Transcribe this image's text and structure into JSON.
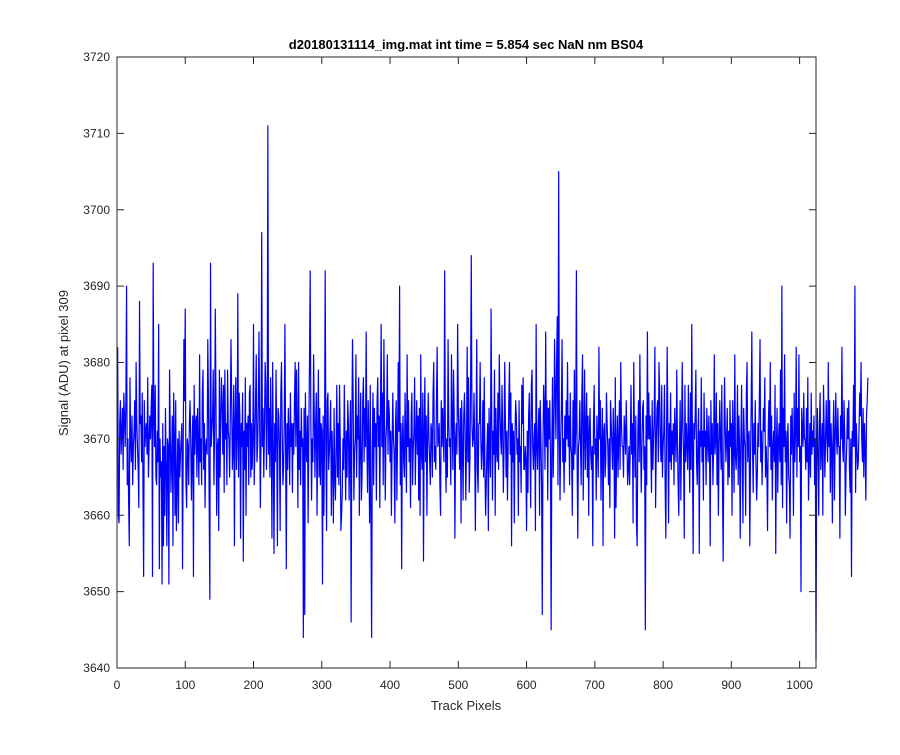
{
  "colors": {
    "series": "#0000ff",
    "axes": "#262626",
    "background": "#ffffff"
  },
  "chart_data": {
    "type": "line",
    "title": "d20180131114_img.mat int time = 5.854 sec  NaN nm BS04",
    "xlabel": "Track Pixels",
    "ylabel": "Signal (ADU) at pixel 309",
    "xlim": [
      0,
      1024
    ],
    "ylim": [
      3640,
      3720
    ],
    "xticks": [
      "0",
      "100",
      "200",
      "300",
      "400",
      "500",
      "600",
      "700",
      "800",
      "900",
      "1000"
    ],
    "yticks": [
      "3640",
      "3650",
      "3660",
      "3670",
      "3680",
      "3690",
      "3700",
      "3710",
      "3720"
    ],
    "grid": false,
    "legend": "none",
    "series": [
      {
        "x_start": 1,
        "x_step": 1,
        "values": [
          3682,
          3660,
          3659,
          3672,
          3675,
          3668,
          3671,
          3674,
          3666,
          3676,
          3673,
          3669,
          3675,
          3690,
          3664,
          3670,
          3662,
          3656,
          3678,
          3670,
          3667,
          3673,
          3664,
          3669,
          3671,
          3675,
          3666,
          3680,
          3672,
          3669,
          3666,
          3661,
          3688,
          3672,
          3673,
          3667,
          3676,
          3664,
          3652,
          3675,
          3669,
          3671,
          3672,
          3668,
          3678,
          3665,
          3669,
          3673,
          3670,
          3674,
          3677,
          3652,
          3693,
          3673,
          3669,
          3677,
          3665,
          3664,
          3671,
          3667,
          3685,
          3653,
          3670,
          3665,
          3667,
          3651,
          3672,
          3656,
          3669,
          3660,
          3674,
          3666,
          3656,
          3670,
          3669,
          3651,
          3679,
          3671,
          3663,
          3667,
          3673,
          3656,
          3676,
          3670,
          3660,
          3675,
          3658,
          3664,
          3670,
          3659,
          3671,
          3665,
          3668,
          3670,
          3672,
          3653,
          3669,
          3683,
          3675,
          3687,
          3664,
          3661,
          3670,
          3669,
          3664,
          3672,
          3675,
          3670,
          3662,
          3668,
          3673,
          3652,
          3677,
          3668,
          3672,
          3673,
          3665,
          3674,
          3669,
          3664,
          3681,
          3667,
          3670,
          3664,
          3676,
          3679,
          3666,
          3672,
          3661,
          3669,
          3670,
          3668,
          3683,
          3675,
          3662,
          3649,
          3693,
          3669,
          3671,
          3673,
          3679,
          3664,
          3671,
          3687,
          3675,
          3660,
          3669,
          3670,
          3658,
          3679,
          3665,
          3673,
          3678,
          3674,
          3668,
          3677,
          3663,
          3679,
          3670,
          3672,
          3664,
          3679,
          3671,
          3670,
          3665,
          3673,
          3683,
          3675,
          3666,
          3669,
          3677,
          3656,
          3672,
          3678,
          3666,
          3670,
          3689,
          3665,
          3676,
          3673,
          3657,
          3672,
          3669,
          3676,
          3654,
          3671,
          3666,
          3678,
          3660,
          3672,
          3669,
          3673,
          3664,
          3676,
          3677,
          3665,
          3672,
          3666,
          3670,
          3685,
          3664,
          3669,
          3675,
          3681,
          3667,
          3669,
          3674,
          3684,
          3672,
          3661,
          3670,
          3697,
          3669,
          3674,
          3665,
          3671,
          3680,
          3677,
          3666,
          3672,
          3711,
          3668,
          3674,
          3665,
          3678,
          3670,
          3657,
          3680,
          3668,
          3655,
          3672,
          3667,
          3679,
          3670,
          3656,
          3674,
          3673,
          3669,
          3658,
          3676,
          3680,
          3671,
          3664,
          3666,
          3672,
          3685,
          3669,
          3653,
          3672,
          3666,
          3674,
          3670,
          3664,
          3676,
          3669,
          3672,
          3663,
          3672,
          3668,
          3675,
          3680,
          3669,
          3679,
          3672,
          3661,
          3680,
          3666,
          3671,
          3664,
          3674,
          3669,
          3670,
          3644,
          3674,
          3647,
          3676,
          3669,
          3667,
          3673,
          3659,
          3671,
          3680,
          3692,
          3672,
          3662,
          3670,
          3667,
          3681,
          3673,
          3665,
          3672,
          3676,
          3660,
          3670,
          3679,
          3665,
          3674,
          3664,
          3672,
          3671,
          3651,
          3673,
          3660,
          3669,
          3692,
          3670,
          3658,
          3675,
          3676,
          3666,
          3668,
          3671,
          3675,
          3660,
          3671,
          3667,
          3659,
          3674,
          3665,
          3662,
          3669,
          3677,
          3665,
          3672,
          3664,
          3677,
          3670,
          3658,
          3660,
          3663,
          3670,
          3666,
          3677,
          3670,
          3662,
          3671,
          3665,
          3675,
          3672,
          3662,
          3669,
          3675,
          3646,
          3671,
          3683,
          3675,
          3662,
          3668,
          3670,
          3681,
          3665,
          3673,
          3670,
          3678,
          3660,
          3669,
          3676,
          3662,
          3665,
          3675,
          3678,
          3667,
          3674,
          3669,
          3684,
          3670,
          3663,
          3675,
          3669,
          3659,
          3677,
          3660,
          3644,
          3669,
          3676,
          3664,
          3674,
          3669,
          3672,
          3662,
          3675,
          3678,
          3669,
          3673,
          3661,
          3674,
          3685,
          3669,
          3676,
          3664,
          3683,
          3672,
          3662,
          3670,
          3672,
          3681,
          3668,
          3675,
          3673,
          3667,
          3671,
          3660,
          3669,
          3676,
          3670,
          3668,
          3659,
          3672,
          3675,
          3662,
          3670,
          3680,
          3671,
          3690,
          3664,
          3672,
          3653,
          3670,
          3673,
          3667,
          3665,
          3676,
          3670,
          3663,
          3681,
          3669,
          3675,
          3667,
          3670,
          3661,
          3673,
          3676,
          3664,
          3669,
          3671,
          3678,
          3664,
          3670,
          3675,
          3668,
          3673,
          3662,
          3674,
          3660,
          3681,
          3668,
          3666,
          3676,
          3654,
          3671,
          3678,
          3667,
          3673,
          3660,
          3670,
          3676,
          3670,
          3667,
          3664,
          3672,
          3671,
          3665,
          3676,
          3680,
          3667,
          3669,
          3666,
          3675,
          3682,
          3669,
          3670,
          3672,
          3664,
          3660,
          3675,
          3669,
          3674,
          3670,
          3667,
          3692,
          3671,
          3663,
          3670,
          3665,
          3683,
          3672,
          3669,
          3670,
          3664,
          3681,
          3673,
          3666,
          3679,
          3673,
          3657,
          3670,
          3672,
          3668,
          3685,
          3674,
          3670,
          3666,
          3674,
          3659,
          3675,
          3669,
          3662,
          3673,
          3676,
          3671,
          3662,
          3669,
          3682,
          3667,
          3678,
          3663,
          3667,
          3677,
          3694,
          3672,
          3669,
          3670,
          3676,
          3669,
          3658,
          3670,
          3683,
          3666,
          3663,
          3672,
          3672,
          3680,
          3670,
          3666,
          3669,
          3675,
          3665,
          3678,
          3666,
          3660,
          3664,
          3669,
          3672,
          3658,
          3674,
          3669,
          3665,
          3687,
          3673,
          3662,
          3671,
          3668,
          3679,
          3660,
          3674,
          3669,
          3667,
          3676,
          3666,
          3681,
          3674,
          3670,
          3668,
          3677,
          3671,
          3663,
          3669,
          3680,
          3672,
          3665,
          3671,
          3662,
          3669,
          3675,
          3680,
          3668,
          3676,
          3656,
          3672,
          3667,
          3671,
          3659,
          3670,
          3675,
          3673,
          3668,
          3670,
          3660,
          3675,
          3667,
          3669,
          3663,
          3677,
          3672,
          3678,
          3666,
          3666,
          3669,
          3667,
          3658,
          3671,
          3663,
          3673,
          3676,
          3669,
          3661,
          3677,
          3679,
          3669,
          3666,
          3670,
          3672,
          3658,
          3685,
          3669,
          3666,
          3671,
          3674,
          3660,
          3675,
          3670,
          3664,
          3647,
          3669,
          3677,
          3674,
          3666,
          3684,
          3669,
          3675,
          3662,
          3674,
          3670,
          3675,
          3668,
          3645,
          3669,
          3678,
          3665,
          3671,
          3683,
          3676,
          3670,
          3680,
          3686,
          3664,
          3705,
          3671,
          3662,
          3670,
          3674,
          3683,
          3667,
          3670,
          3663,
          3673,
          3667,
          3675,
          3670,
          3680,
          3669,
          3673,
          3664,
          3676,
          3669,
          3668,
          3660,
          3675,
          3666,
          3679,
          3668,
          3671,
          3692,
          3668,
          3657,
          3669,
          3670,
          3675,
          3669,
          3664,
          3676,
          3681,
          3662,
          3670,
          3679,
          3666,
          3671,
          3676,
          3665,
          3673,
          3660,
          3671,
          3674,
          3668,
          3666,
          3669,
          3656,
          3672,
          3677,
          3668,
          3670,
          3662,
          3673,
          3669,
          3665,
          3682,
          3670,
          3675,
          3662,
          3669,
          3674,
          3656,
          3671,
          3672,
          3665,
          3667,
          3676,
          3672,
          3669,
          3664,
          3670,
          3661,
          3675,
          3672,
          3669,
          3666,
          3674,
          3670,
          3657,
          3678,
          3661,
          3669,
          3673,
          3665,
          3670,
          3675,
          3666,
          3680,
          3672,
          3669,
          3669,
          3665,
          3673,
          3671,
          3668,
          3675,
          3670,
          3664,
          3666,
          3669,
          3664,
          3670,
          3677,
          3668,
          3672,
          3659,
          3680,
          3670,
          3665,
          3673,
          3659,
          3656,
          3671,
          3675,
          3667,
          3681,
          3670,
          3663,
          3669,
          3674,
          3675,
          3666,
          3669,
          3645,
          3673,
          3664,
          3684,
          3670,
          3676,
          3670,
          3673,
          3669,
          3663,
          3675,
          3666,
          3670,
          3673,
          3682,
          3661,
          3669,
          3674,
          3675,
          3667,
          3680,
          3676,
          3669,
          3667,
          3677,
          3665,
          3669,
          3671,
          3677,
          3664,
          3657,
          3670,
          3682,
          3672,
          3659,
          3672,
          3667,
          3676,
          3666,
          3671,
          3668,
          3672,
          3664,
          3674,
          3670,
          3667,
          3679,
          3670,
          3664,
          3660,
          3669,
          3675,
          3662,
          3670,
          3680,
          3672,
          3668,
          3657,
          3677,
          3667,
          3672,
          3669,
          3666,
          3677,
          3669,
          3663,
          3676,
          3666,
          3685,
          3669,
          3655,
          3672,
          3670,
          3673,
          3679,
          3667,
          3664,
          3670,
          3674,
          3655,
          3671,
          3669,
          3678,
          3667,
          3671,
          3662,
          3676,
          3669,
          3671,
          3664,
          3674,
          3670,
          3667,
          3673,
          3669,
          3656,
          3675,
          3668,
          3672,
          3664,
          3669,
          3681,
          3668,
          3670,
          3676,
          3664,
          3672,
          3660,
          3669,
          3675,
          3670,
          3666,
          3677,
          3664,
          3654,
          3668,
          3678,
          3672,
          3667,
          3670,
          3674,
          3664,
          3671,
          3665,
          3675,
          3669,
          3672,
          3660,
          3675,
          3670,
          3663,
          3681,
          3668,
          3666,
          3669,
          3677,
          3664,
          3673,
          3669,
          3657,
          3670,
          3677,
          3668,
          3659,
          3674,
          3670,
          3669,
          3660,
          3676,
          3680,
          3667,
          3670,
          3671,
          3656,
          3667,
          3674,
          3684,
          3669,
          3663,
          3672,
          3668,
          3675,
          3667,
          3662,
          3665,
          3672,
          3669,
          3675,
          3683,
          3667,
          3671,
          3664,
          3669,
          3674,
          3671,
          3678,
          3665,
          3669,
          3666,
          3658,
          3671,
          3675,
          3669,
          3680,
          3666,
          3673,
          3662,
          3669,
          3671,
          3667,
          3677,
          3655,
          3669,
          3674,
          3663,
          3670,
          3672,
          3667,
          3679,
          3664,
          3690,
          3661,
          3674,
          3669,
          3681,
          3667,
          3671,
          3659,
          3670,
          3672,
          3665,
          3664,
          3657,
          3673,
          3668,
          3674,
          3669,
          3660,
          3676,
          3667,
          3671,
          3682,
          3665,
          3674,
          3669,
          3681,
          3667,
          3669,
          3650,
          3674,
          3671,
          3669,
          3676,
          3670,
          3670,
          3666,
          3674,
          3667,
          3678,
          3662,
          3667,
          3672,
          3665,
          3676,
          3668,
          3671,
          3669,
          3673,
          3664,
          3670,
          3641,
          3665,
          3674,
          3668,
          3660,
          3672,
          3676,
          3666,
          3669,
          3672,
          3660,
          3677,
          3671,
          3665,
          3670,
          3675,
          3670,
          3667,
          3680,
          3669,
          3675,
          3663,
          3672,
          3669,
          3659,
          3671,
          3675,
          3662,
          3670,
          3676,
          3670,
          3668,
          3674,
          3669,
          3669,
          3657,
          3673,
          3670,
          3682,
          3669,
          3667,
          3675,
          3671,
          3660,
          3666,
          3669,
          3674,
          3670,
          3675,
          3666,
          3663,
          3670,
          3652,
          3671,
          3669,
          3677,
          3669,
          3690,
          3663,
          3672,
          3669,
          3666,
          3667,
          3671,
          3676,
          3673,
          3680,
          3670,
          3667,
          3674,
          3665,
          3672,
          3669,
          3662,
          3673,
          3675,
          3678
        ]
      }
    ]
  }
}
